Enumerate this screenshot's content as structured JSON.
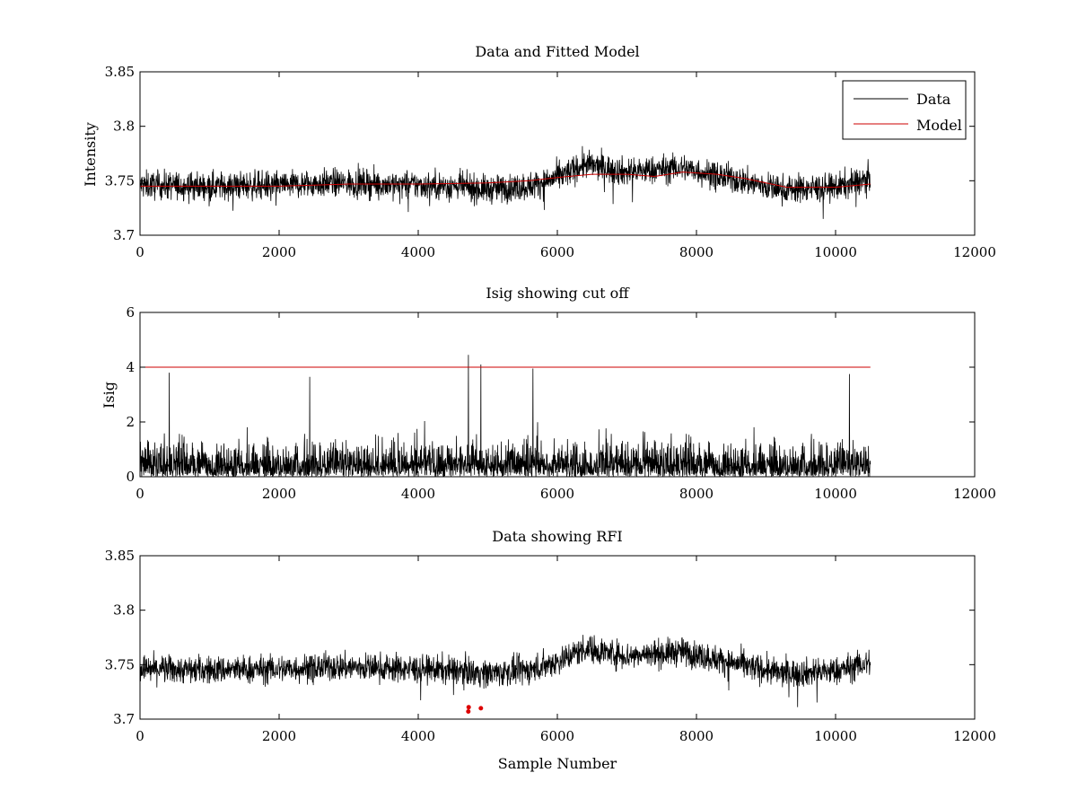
{
  "colors": {
    "data": "#000000",
    "model": "#cc0000",
    "cutoff": "#cc0000",
    "rfi": "#dd0000"
  },
  "chart_data": [
    {
      "type": "line",
      "title": "Data and Fitted Model",
      "xlabel": "",
      "ylabel": "Intensity",
      "xlim": [
        0,
        12000
      ],
      "ylim": [
        3.7,
        3.85
      ],
      "xticks": [
        0,
        2000,
        4000,
        6000,
        8000,
        10000,
        12000
      ],
      "yticks": [
        3.7,
        3.75,
        3.8,
        3.85
      ],
      "ytick_labels": [
        "3.7",
        "3.75",
        "3.8",
        "3.85"
      ],
      "legend": {
        "position": "top-right",
        "entries": [
          "Data",
          "Model"
        ]
      },
      "series": [
        {
          "name": "Data",
          "kind": "noise",
          "x_range": [
            0,
            10500
          ],
          "trend_x": [
            0,
            1000,
            2000,
            2800,
            3500,
            4500,
            5000,
            5600,
            6000,
            6400,
            7000,
            7800,
            8500,
            9200,
            10000,
            10500
          ],
          "trend_y": [
            3.746,
            3.745,
            3.746,
            3.748,
            3.747,
            3.745,
            3.742,
            3.745,
            3.753,
            3.765,
            3.758,
            3.762,
            3.752,
            3.742,
            3.744,
            3.752
          ],
          "spread": 0.009
        },
        {
          "name": "Model",
          "x": [
            0,
            1000,
            2000,
            3000,
            4000,
            5000,
            5600,
            6000,
            6500,
            7000,
            7400,
            7800,
            8300,
            8700,
            9000,
            9300,
            10000,
            10500
          ],
          "y": [
            3.745,
            3.745,
            3.745,
            3.747,
            3.747,
            3.748,
            3.75,
            3.753,
            3.756,
            3.756,
            3.754,
            3.758,
            3.756,
            3.752,
            3.748,
            3.744,
            3.744,
            3.747
          ]
        }
      ]
    },
    {
      "type": "line",
      "title": "Isig showing cut off",
      "xlabel": "",
      "ylabel": "Isig",
      "xlim": [
        0,
        12000
      ],
      "ylim": [
        0,
        6
      ],
      "xticks": [
        0,
        2000,
        4000,
        6000,
        8000,
        10000,
        12000
      ],
      "yticks": [
        0,
        2,
        4,
        6
      ],
      "ytick_labels": [
        "0",
        "2",
        "4",
        "6"
      ],
      "series": [
        {
          "name": "Isig",
          "kind": "abs-noise",
          "x_range": [
            0,
            10500
          ],
          "scale": 0.8,
          "spikes": [
            {
              "x": 420,
              "y": 3.8
            },
            {
              "x": 4720,
              "y": 4.45
            },
            {
              "x": 4900,
              "y": 4.1
            },
            {
              "x": 5650,
              "y": 3.95
            },
            {
              "x": 10200,
              "y": 3.75
            },
            {
              "x": 2440,
              "y": 3.65
            }
          ]
        },
        {
          "name": "Cut off",
          "x": [
            0,
            10500
          ],
          "y": [
            4,
            4
          ]
        }
      ]
    },
    {
      "type": "line",
      "title": "Data showing RFI",
      "xlabel": "Sample Number",
      "ylabel": "",
      "xlim": [
        0,
        12000
      ],
      "ylim": [
        3.7,
        3.85
      ],
      "xticks": [
        0,
        2000,
        4000,
        6000,
        8000,
        10000,
        12000
      ],
      "yticks": [
        3.7,
        3.75,
        3.8,
        3.85
      ],
      "ytick_labels": [
        "3.7",
        "3.75",
        "3.8",
        "3.85"
      ],
      "series": [
        {
          "name": "Data",
          "kind": "noise",
          "x_range": [
            0,
            10500
          ],
          "trend_x": [
            0,
            1000,
            2000,
            2800,
            3500,
            4500,
            5000,
            5600,
            6000,
            6400,
            7000,
            7800,
            8500,
            9200,
            10000,
            10500
          ],
          "trend_y": [
            3.746,
            3.745,
            3.746,
            3.748,
            3.747,
            3.745,
            3.742,
            3.745,
            3.753,
            3.765,
            3.758,
            3.762,
            3.752,
            3.742,
            3.744,
            3.752
          ],
          "spread": 0.009
        },
        {
          "name": "RFI",
          "kind": "markers",
          "x": [
            4720,
            4725,
            4900
          ],
          "y": [
            3.707,
            3.711,
            3.71
          ]
        }
      ]
    }
  ]
}
